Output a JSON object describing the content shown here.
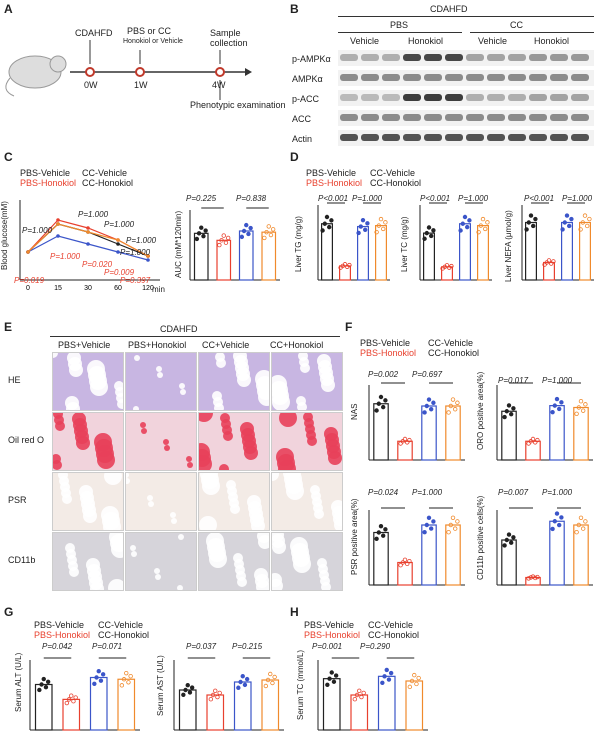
{
  "panels": {
    "A": {
      "letter": "A",
      "timeline": {
        "top": [
          "CDAHFD",
          "PBS or CC",
          "Sample"
        ],
        "top_sub": [
          "Honokiol or Vehicle",
          "collection"
        ],
        "ticks": [
          "0W",
          "1W",
          "4W"
        ],
        "bottom": "Phenotypic examination"
      }
    },
    "B": {
      "letter": "B",
      "diet": "CDAHFD",
      "groups": [
        "PBS",
        "CC"
      ],
      "treatments": [
        "Vehicle",
        "Honokiol",
        "Vehicle",
        "Honokiol"
      ],
      "blots": [
        "p-AMPKα",
        "AMPKα",
        "p-ACC",
        "ACC",
        "Actin"
      ]
    },
    "C": {
      "letter": "C",
      "legend": [
        "PBS-Vehicle",
        "CC-Vehicle",
        "PBS-Honokiol",
        "CC-Honokiol"
      ],
      "line_ylabel": "Blood glucose(mM)",
      "line_xunit": "min",
      "line_pvals": [
        "P=1.000",
        "P=1.000",
        "P=1.000",
        "P=1.000",
        "P=1.000"
      ],
      "line_pvals_red": [
        "P=1.000",
        "P=0.020",
        "P=0.009",
        "P=0.019",
        "P=0.397"
      ],
      "bar_ylabel": "AUC (mM*120min)",
      "bar_pvals": [
        "P=0.225",
        "P=0.838"
      ]
    },
    "D": {
      "letter": "D",
      "legend": [
        "PBS-Vehicle",
        "CC-Vehicle",
        "PBS-Honokiol",
        "CC-Honokiol"
      ],
      "charts": [
        {
          "ylabel": "Liver TG (mg/g)",
          "pvals": [
            "P<0.001",
            "P=1.000"
          ]
        },
        {
          "ylabel": "Liver TC (mg/g)",
          "pvals": [
            "P<0.001",
            "P=1.000"
          ]
        },
        {
          "ylabel": "Liver NEFA (μmol/g)",
          "pvals": [
            "P<0.001",
            "P=1.000"
          ]
        }
      ]
    },
    "E": {
      "letter": "E",
      "diet": "CDAHFD",
      "columns": [
        "PBS+Vehicle",
        "PBS+Honokiol",
        "CC+Vehicle",
        "CC+Honokiol"
      ],
      "rows": [
        "HE",
        "Oil red O",
        "PSR",
        "CD11b"
      ]
    },
    "F": {
      "letter": "F",
      "legend": [
        "PBS-Vehicle",
        "CC-Vehicle",
        "PBS-Honokiol",
        "CC-Honokiol"
      ],
      "charts": [
        {
          "ylabel": "NAS",
          "pvals": [
            "P=0.002",
            "P=0.697"
          ]
        },
        {
          "ylabel": "ORO positive area(%)",
          "pvals": [
            "P=0.017",
            "P=1.000"
          ]
        },
        {
          "ylabel": "PSR positive area(%)",
          "pvals": [
            "P=0.024",
            "P=1.000"
          ]
        },
        {
          "ylabel": "CD11b positive cells(%)",
          "pvals": [
            "P=0.007",
            "P=1.000"
          ]
        }
      ]
    },
    "G": {
      "letter": "G",
      "legend": [
        "PBS-Vehicle",
        "CC-Vehicle",
        "PBS-Honokiol",
        "CC-Honokiol"
      ],
      "charts": [
        {
          "ylabel": "Serum ALT (U/L)",
          "pvals": [
            "P=0.042",
            "P=0.071"
          ]
        },
        {
          "ylabel": "Serum AST (U/L)",
          "pvals": [
            "P=0.037",
            "P=0.215"
          ]
        }
      ]
    },
    "H": {
      "letter": "H",
      "legend": [
        "PBS-Vehicle",
        "CC-Vehicle",
        "PBS-Honokiol",
        "CC-Honokiol"
      ],
      "charts": [
        {
          "ylabel": "Serum TC (mmol/L)",
          "pvals": [
            "P=0.001",
            "P=0.290"
          ]
        }
      ]
    }
  },
  "colors": {
    "black": "#222222",
    "red": "#e8402e",
    "blue": "#3b55c9",
    "orange": "#f08a2c"
  },
  "chart_data": [
    {
      "type": "line",
      "id": "C-glucose",
      "x": [
        0,
        15,
        30,
        60,
        120
      ],
      "series": [
        {
          "name": "PBS-Vehicle",
          "values": [
            7,
            14,
            12,
            9,
            6
          ]
        },
        {
          "name": "CC-Vehicle",
          "values": [
            7,
            15,
            13,
            10,
            6
          ]
        },
        {
          "name": "PBS-Honokiol",
          "values": [
            7,
            11,
            9,
            7,
            5
          ]
        },
        {
          "name": "CC-Honokiol",
          "values": [
            7,
            14,
            12,
            10,
            6
          ]
        }
      ]
    },
    {
      "type": "bar",
      "id": "C-AUC",
      "categories": [
        "PBS-Vehicle",
        "PBS-Honokiol",
        "CC-Vehicle",
        "CC-Honokiol"
      ],
      "values": [
        40,
        34,
        42,
        41
      ]
    },
    {
      "type": "bar",
      "id": "D-TG",
      "categories": [
        "PBS-Vehicle",
        "PBS-Honokiol",
        "CC-Vehicle",
        "CC-Honokiol"
      ],
      "values": [
        300,
        75,
        285,
        290
      ]
    },
    {
      "type": "bar",
      "id": "D-TC",
      "categories": [
        "PBS-Vehicle",
        "PBS-Honokiol",
        "CC-Vehicle",
        "CC-Honokiol"
      ],
      "values": [
        125,
        35,
        150,
        145
      ]
    },
    {
      "type": "bar",
      "id": "D-NEFA",
      "categories": [
        "PBS-Vehicle",
        "PBS-Honokiol",
        "CC-Vehicle",
        "CC-Honokiol"
      ],
      "values": [
        23,
        7,
        23,
        23
      ]
    },
    {
      "type": "bar",
      "id": "F-NAS",
      "categories": [
        "PBS-Vehicle",
        "PBS-Honokiol",
        "CC-Vehicle",
        "CC-Honokiol"
      ],
      "values": [
        7.5,
        2.5,
        7.2,
        7.2
      ]
    },
    {
      "type": "bar",
      "id": "F-ORO",
      "categories": [
        "PBS-Vehicle",
        "PBS-Honokiol",
        "CC-Vehicle",
        "CC-Honokiol"
      ],
      "values": [
        26,
        10,
        29,
        28
      ]
    },
    {
      "type": "bar",
      "id": "F-PSR",
      "categories": [
        "PBS-Vehicle",
        "PBS-Honokiol",
        "CC-Vehicle",
        "CC-Honokiol"
      ],
      "values": [
        7,
        3,
        8,
        8
      ]
    },
    {
      "type": "bar",
      "id": "F-CD11b",
      "categories": [
        "PBS-Vehicle",
        "PBS-Honokiol",
        "CC-Vehicle",
        "CC-Honokiol"
      ],
      "values": [
        6,
        1,
        8.5,
        8
      ]
    },
    {
      "type": "bar",
      "id": "G-ALT",
      "categories": [
        "PBS-Vehicle",
        "PBS-Honokiol",
        "CC-Vehicle",
        "CC-Honokiol"
      ],
      "values": [
        52,
        35,
        60,
        58
      ]
    },
    {
      "type": "bar",
      "id": "G-AST",
      "categories": [
        "PBS-Vehicle",
        "PBS-Honokiol",
        "CC-Vehicle",
        "CC-Honokiol"
      ],
      "values": [
        400,
        350,
        480,
        500
      ]
    },
    {
      "type": "bar",
      "id": "H-TC",
      "categories": [
        "PBS-Vehicle",
        "PBS-Honokiol",
        "CC-Vehicle",
        "CC-Honokiol"
      ],
      "values": [
        2.2,
        1.5,
        2.3,
        2.1
      ]
    }
  ]
}
